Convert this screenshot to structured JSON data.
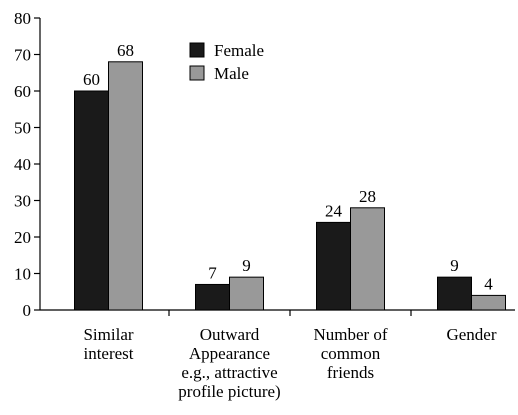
{
  "chart_data": {
    "type": "bar",
    "categories": [
      "Similar\ninterest",
      "Outward\nAppearance\ne.g., attractive\nprofile picture)",
      "Number of\ncommon\nfriends",
      "Gender"
    ],
    "series": [
      {
        "name": "Female",
        "color": "#1a1a1a",
        "values": [
          60,
          7,
          24,
          9
        ]
      },
      {
        "name": "Male",
        "color": "#999999",
        "values": [
          68,
          9,
          28,
          4
        ]
      }
    ],
    "ylim": [
      0,
      80
    ],
    "yticks": [
      0,
      10,
      20,
      30,
      40,
      50,
      60,
      70,
      80
    ],
    "legend": "top"
  }
}
